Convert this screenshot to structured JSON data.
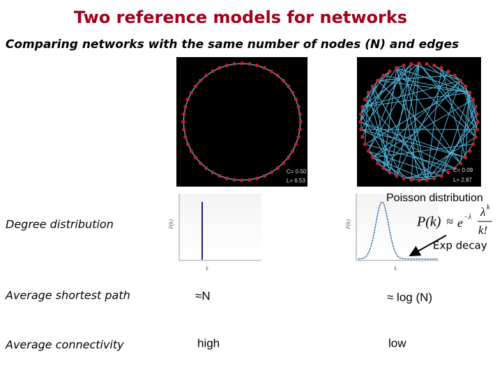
{
  "title": "Two reference models for networks",
  "subtitle": "Comparing networks with the same number of nodes (N) and edges",
  "networks": [
    {
      "clustering": "C= 0.50",
      "path_length": "L= 6.53"
    },
    {
      "clustering": "C= 0.09",
      "path_length": "L= 2.87"
    }
  ],
  "plots": [
    {
      "y_label": "P(k)",
      "x_label": "k"
    },
    {
      "y_label": "P(k)",
      "x_label": "k"
    }
  ],
  "poisson_label": "Poisson distribution",
  "formula": {
    "lhs": "P(k)",
    "approx": "≈",
    "base": "e",
    "base_power": "−λ",
    "numerator": "λ",
    "numerator_power": "k",
    "denominator": "k!"
  },
  "annotation": "Exp decay",
  "rows": [
    {
      "label": "Degree distribution"
    },
    {
      "label": "Average shortest path",
      "regular": "≈N",
      "random": "≈ log (N)"
    },
    {
      "label": "Average connectivity",
      "regular": "high",
      "random": "low"
    }
  ]
}
